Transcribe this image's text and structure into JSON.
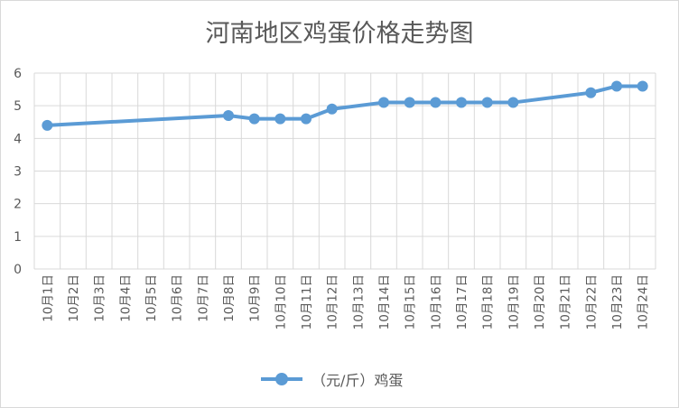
{
  "chart_data": {
    "type": "line",
    "title": "河南地区鸡蛋价格走势图",
    "categories": [
      "10月1日",
      "10月2日",
      "10月3日",
      "10月4日",
      "10月5日",
      "10月6日",
      "10月7日",
      "10月8日",
      "10月9日",
      "10月10日",
      "10月11日",
      "10月12日",
      "10月13日",
      "10月14日",
      "10月15日",
      "10月16日",
      "10月17日",
      "10月18日",
      "10月19日",
      "10月20日",
      "10月21日",
      "10月22日",
      "10月23日",
      "10月24日"
    ],
    "series": [
      {
        "name": "（元/斤）鸡蛋",
        "color": "#5b9bd5",
        "values": [
          4.4,
          null,
          null,
          null,
          null,
          null,
          null,
          4.7,
          4.6,
          4.6,
          4.6,
          4.9,
          null,
          5.1,
          5.1,
          5.1,
          5.1,
          5.1,
          5.1,
          null,
          null,
          5.4,
          5.6,
          5.6
        ]
      }
    ],
    "ylim": [
      0,
      6
    ],
    "yticks": [
      0,
      1,
      2,
      3,
      4,
      5,
      6
    ],
    "grid": true,
    "legend": "bottom",
    "xlabel": "",
    "ylabel": ""
  }
}
